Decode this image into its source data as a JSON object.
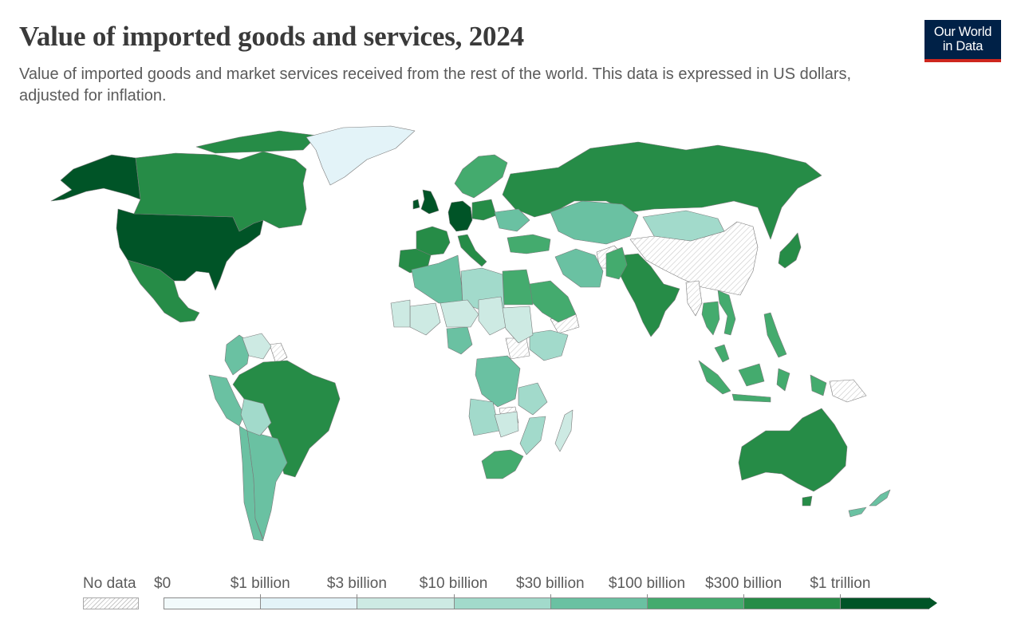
{
  "header": {
    "title": "Value of imported goods and services, 2024",
    "subtitle": "Value of imported goods and market services received from the rest of the world. This data is expressed in US dollars, adjusted for inflation.",
    "logo_line1": "Our World",
    "logo_line2": "in Data"
  },
  "colors": {
    "no_data": "#ffffff",
    "bin_1": "#f2fafb",
    "bin_2": "#e3f3f8",
    "bin_3": "#cdeae3",
    "bin_4": "#a2dacb",
    "bin_5": "#6ac1a2",
    "bin_6": "#44ab6e",
    "bin_7": "#268c47",
    "bin_8": "#005427",
    "brand": "#002147",
    "brand_accent": "#ce261e"
  },
  "legend": {
    "no_data_label": "No data",
    "thresholds": [
      "$0",
      "$1 billion",
      "$3 billion",
      "$10 billion",
      "$30 billion",
      "$100 billion",
      "$300 billion",
      "$1 trillion"
    ]
  },
  "regions": [
    {
      "name": "United States",
      "bin": 8
    },
    {
      "name": "Germany",
      "bin": 8
    },
    {
      "name": "United Kingdom",
      "bin": 8
    },
    {
      "name": "Alaska",
      "bin": 8
    },
    {
      "name": "Canada",
      "bin": 7
    },
    {
      "name": "Mexico",
      "bin": 7
    },
    {
      "name": "Brazil",
      "bin": 7
    },
    {
      "name": "Russia",
      "bin": 7
    },
    {
      "name": "India",
      "bin": 7
    },
    {
      "name": "Australia",
      "bin": 7
    },
    {
      "name": "Japan",
      "bin": 7
    },
    {
      "name": "France",
      "bin": 7
    },
    {
      "name": "Spain",
      "bin": 7
    },
    {
      "name": "Italy",
      "bin": 7
    },
    {
      "name": "Poland",
      "bin": 7
    },
    {
      "name": "Scandinavia",
      "bin": 6
    },
    {
      "name": "South Africa",
      "bin": 6
    },
    {
      "name": "Saudi Arabia",
      "bin": 6
    },
    {
      "name": "Turkey",
      "bin": 6
    },
    {
      "name": "Egypt",
      "bin": 6
    },
    {
      "name": "Indonesia",
      "bin": 6
    },
    {
      "name": "Thailand",
      "bin": 6
    },
    {
      "name": "Vietnam",
      "bin": 6
    },
    {
      "name": "Malaysia",
      "bin": 6
    },
    {
      "name": "Philippines",
      "bin": 6
    },
    {
      "name": "Pakistan",
      "bin": 6
    },
    {
      "name": "Colombia",
      "bin": 5
    },
    {
      "name": "Peru",
      "bin": 5
    },
    {
      "name": "Chile",
      "bin": 5
    },
    {
      "name": "Argentina",
      "bin": 5
    },
    {
      "name": "Kazakhstan",
      "bin": 5
    },
    {
      "name": "Iran",
      "bin": 5
    },
    {
      "name": "Algeria",
      "bin": 5
    },
    {
      "name": "New Zealand",
      "bin": 5
    },
    {
      "name": "Ukraine",
      "bin": 5
    },
    {
      "name": "Nigeria",
      "bin": 5
    },
    {
      "name": "DR Congo",
      "bin": 5
    },
    {
      "name": "Bolivia",
      "bin": 4
    },
    {
      "name": "Libya",
      "bin": 4
    },
    {
      "name": "Mongolia",
      "bin": 4
    },
    {
      "name": "Ethiopia",
      "bin": 4
    },
    {
      "name": "Tanzania",
      "bin": 4
    },
    {
      "name": "Angola",
      "bin": 4
    },
    {
      "name": "Mozambique",
      "bin": 4
    },
    {
      "name": "Venezuela",
      "bin": 3
    },
    {
      "name": "Mali",
      "bin": 3
    },
    {
      "name": "Niger",
      "bin": 3
    },
    {
      "name": "Chad",
      "bin": 3
    },
    {
      "name": "Sudan",
      "bin": 3
    },
    {
      "name": "Mauritania",
      "bin": 3
    },
    {
      "name": "Madagascar",
      "bin": 3
    },
    {
      "name": "Zambia",
      "bin": 3
    },
    {
      "name": "Greenland",
      "bin": 2
    },
    {
      "name": "China",
      "bin": 0
    },
    {
      "name": "Afghanistan",
      "bin": 0
    },
    {
      "name": "Myanmar",
      "bin": 0
    },
    {
      "name": "Zimbabwe",
      "bin": 0
    },
    {
      "name": "South Sudan",
      "bin": 0
    },
    {
      "name": "Yemen",
      "bin": 0
    },
    {
      "name": "Guyana",
      "bin": 0
    },
    {
      "name": "Papua New Guinea",
      "bin": 0
    }
  ]
}
